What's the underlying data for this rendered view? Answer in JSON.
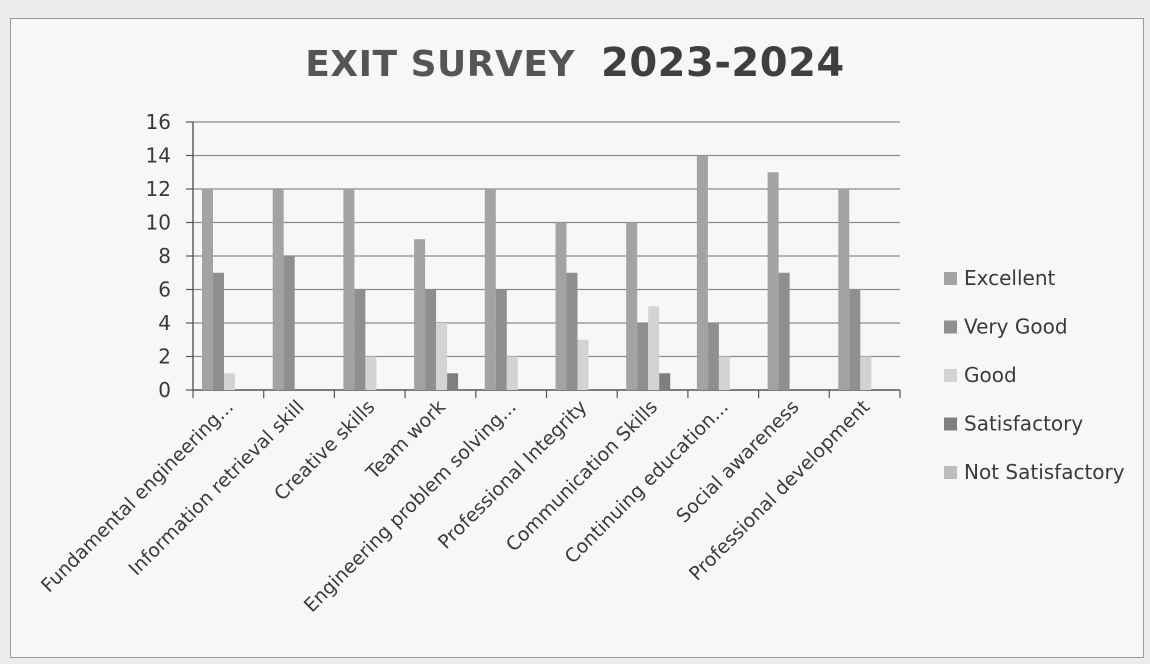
{
  "chart_data": {
    "type": "bar",
    "title_part1": "EXIT SURVEY",
    "title_part2": "2023-2024",
    "categories": [
      "Fundamental engineering...",
      "Information retrieval skill",
      "Creative skills",
      "Team work",
      "Engineering problem solving...",
      "Professional Integrity",
      "Communication Skills",
      "Continuing education...",
      "Social awareness",
      "Professional development"
    ],
    "series": [
      {
        "name": "Excellent",
        "color": "#a3a3a3",
        "values": [
          12,
          12,
          12,
          9,
          12,
          10,
          10,
          14,
          13,
          12
        ]
      },
      {
        "name": "Very Good",
        "color": "#8f8f8f",
        "values": [
          7,
          8,
          6,
          6,
          6,
          7,
          4,
          4,
          7,
          6
        ]
      },
      {
        "name": "Good",
        "color": "#d3d3d3",
        "values": [
          1,
          0,
          2,
          4,
          2,
          3,
          5,
          2,
          0,
          2
        ]
      },
      {
        "name": "Satisfactory",
        "color": "#7f7f7f",
        "values": [
          0,
          0,
          0,
          1,
          0,
          0,
          1,
          0,
          0,
          0
        ]
      },
      {
        "name": "Not Satisfactory",
        "color": "#bdbdbd",
        "values": [
          0,
          0,
          0,
          0,
          0,
          0,
          0,
          0,
          0,
          0
        ]
      }
    ],
    "yticks": [
      "0",
      "2",
      "4",
      "6",
      "8",
      "10",
      "12",
      "14",
      "16"
    ],
    "ylim": [
      0,
      16
    ],
    "grid": true,
    "legend": "right"
  }
}
